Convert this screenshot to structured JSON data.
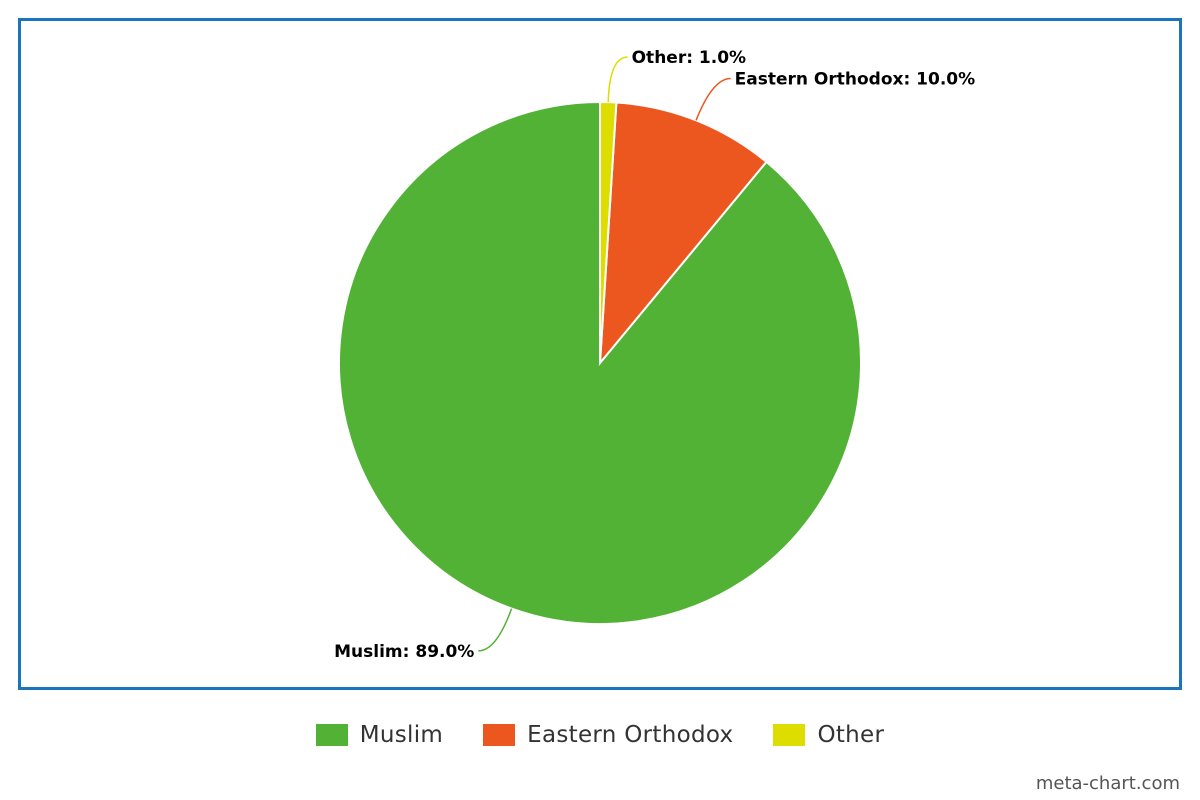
{
  "chart_data": {
    "type": "pie",
    "categories": [
      "Muslim",
      "Eastern Orthodox",
      "Other"
    ],
    "values": [
      89.0,
      10.0,
      1.0
    ],
    "colors": [
      "#52b235",
      "#ec561f",
      "#dddd00"
    ],
    "data_labels": [
      "Muslim: 89.0%",
      "Eastern Orthodox: 10.0%",
      "Other: 1.0%"
    ],
    "start_angle": "top",
    "direction": "counterclockwise",
    "legend_position": "bottom-center"
  },
  "watermark": "meta-chart.com"
}
